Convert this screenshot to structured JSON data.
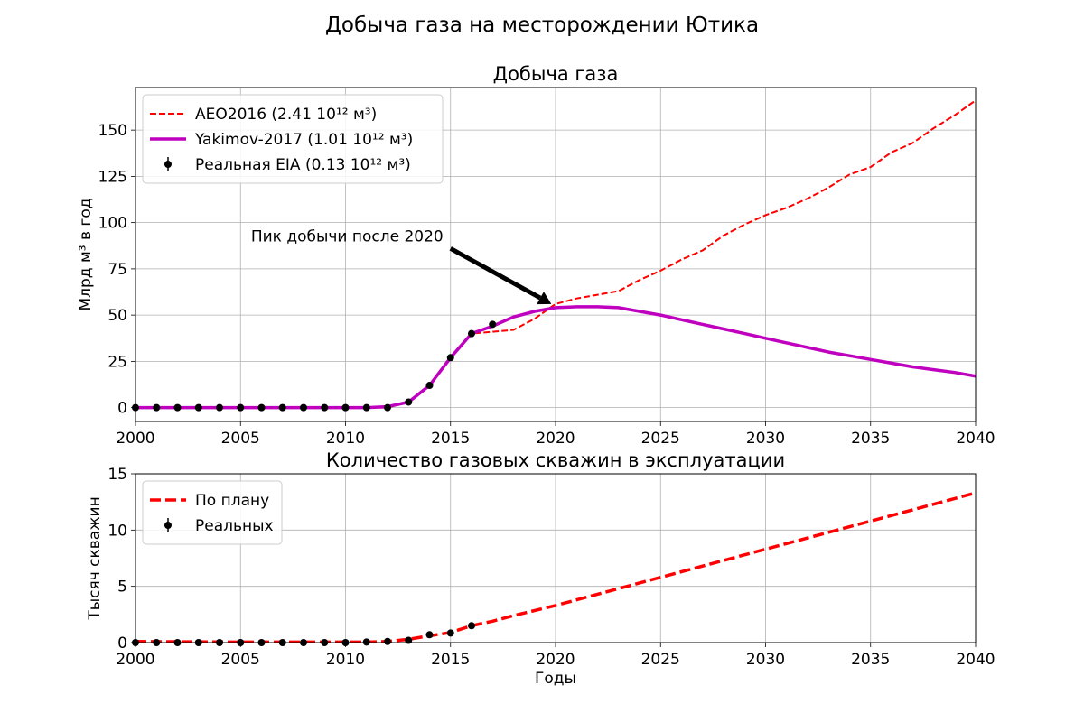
{
  "figure": {
    "title": "Добыча газа на месторождении Ютика"
  },
  "chart_data": [
    {
      "type": "line",
      "title": "Добыча газа",
      "xlabel": "",
      "ylabel": "Млрд м³ в год",
      "xlim": [
        2000,
        2040
      ],
      "ylim": [
        -7.5,
        173
      ],
      "xticks": [
        2000,
        2005,
        2010,
        2015,
        2020,
        2025,
        2030,
        2035,
        2040
      ],
      "yticks": [
        0,
        25,
        50,
        75,
        100,
        125,
        150
      ],
      "grid": true,
      "legend_position": "upper-left",
      "annotation": {
        "text": "Пик добычи после 2020",
        "arrow_from": [
          2015,
          86
        ],
        "arrow_to": [
          2019.8,
          56
        ]
      },
      "series": [
        {
          "name": "AEO2016 (2.41 10¹² м³)",
          "style": "dashed",
          "color": "#ff0000",
          "x": [
            2000,
            2001,
            2002,
            2003,
            2004,
            2005,
            2006,
            2007,
            2008,
            2009,
            2010,
            2011,
            2012,
            2013,
            2014,
            2015,
            2016,
            2017,
            2018,
            2019,
            2020,
            2021,
            2022,
            2023,
            2024,
            2025,
            2026,
            2027,
            2028,
            2029,
            2030,
            2031,
            2032,
            2033,
            2034,
            2035,
            2036,
            2037,
            2038,
            2039,
            2040
          ],
          "y": [
            0,
            0,
            0,
            0,
            0,
            0,
            0,
            0,
            0,
            0,
            0,
            0,
            0,
            3,
            12,
            27,
            40,
            41,
            42,
            48,
            56,
            59,
            61,
            63,
            69,
            74,
            80,
            85,
            93,
            99,
            104,
            108,
            113,
            119,
            126,
            130,
            138,
            143,
            151,
            158,
            166
          ]
        },
        {
          "name": "Yakimov-2017 (1.01 10¹² м³)",
          "style": "solid",
          "color": "#bf00bf",
          "x": [
            2000,
            2001,
            2002,
            2003,
            2004,
            2005,
            2006,
            2007,
            2008,
            2009,
            2010,
            2011,
            2012,
            2013,
            2014,
            2015,
            2016,
            2017,
            2018,
            2019,
            2020,
            2021,
            2022,
            2023,
            2024,
            2025,
            2026,
            2027,
            2028,
            2029,
            2030,
            2031,
            2032,
            2033,
            2034,
            2035,
            2036,
            2037,
            2038,
            2039,
            2040
          ],
          "y": [
            0,
            0,
            0,
            0,
            0,
            0,
            0,
            0,
            0,
            0,
            0,
            0,
            0.5,
            3,
            12,
            27,
            40,
            44,
            49,
            52,
            54,
            54.5,
            54.5,
            54,
            52,
            50,
            47.5,
            45,
            42.5,
            40,
            37.5,
            35,
            32.5,
            30,
            28,
            26,
            24,
            22,
            20.5,
            19,
            17
          ]
        },
        {
          "name": "Реальная EIA (0.13 10¹² м³)",
          "style": "points",
          "color": "#000000",
          "x": [
            2000,
            2001,
            2002,
            2003,
            2004,
            2005,
            2006,
            2007,
            2008,
            2009,
            2010,
            2011,
            2012,
            2013,
            2014,
            2015,
            2016,
            2017
          ],
          "y": [
            0,
            0,
            0,
            0,
            0,
            0,
            0,
            0,
            0,
            0,
            0,
            0,
            0,
            3,
            12,
            27,
            40,
            45
          ]
        }
      ]
    },
    {
      "type": "line",
      "title": "Количество газовых скважин в эксплуатации",
      "xlabel": "Годы",
      "ylabel": "Тысяч скважин",
      "xlim": [
        2000,
        2040
      ],
      "ylim": [
        0,
        15
      ],
      "xticks": [
        2000,
        2005,
        2010,
        2015,
        2020,
        2025,
        2030,
        2035,
        2040
      ],
      "yticks": [
        0,
        5,
        10,
        15
      ],
      "grid": true,
      "legend_position": "upper-left",
      "series": [
        {
          "name": "По плану",
          "style": "dashed",
          "color": "#ff0000",
          "x": [
            2000,
            2005,
            2010,
            2011,
            2012,
            2013,
            2014,
            2015,
            2016,
            2017,
            2018,
            2020,
            2025,
            2030,
            2035,
            2040
          ],
          "y": [
            0.1,
            0.05,
            0.05,
            0.05,
            0.1,
            0.3,
            0.6,
            0.9,
            1.5,
            1.9,
            2.4,
            3.3,
            5.8,
            8.3,
            10.8,
            13.3
          ]
        },
        {
          "name": "Реальных",
          "style": "points",
          "color": "#000000",
          "x": [
            2000,
            2001,
            2002,
            2003,
            2004,
            2005,
            2006,
            2007,
            2008,
            2009,
            2010,
            2011,
            2012,
            2013,
            2014,
            2015,
            2016
          ],
          "y": [
            0,
            0,
            0,
            0,
            0,
            0,
            0,
            0,
            0,
            0,
            0,
            0.05,
            0.1,
            0.2,
            0.7,
            0.85,
            1.5
          ]
        }
      ]
    }
  ]
}
